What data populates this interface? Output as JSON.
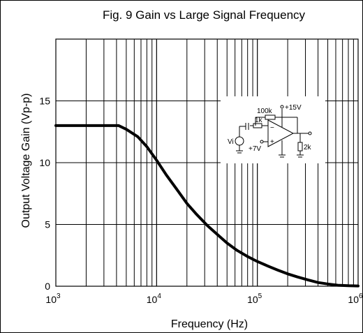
{
  "chart_data": {
    "type": "line",
    "title": "Fig. 9 Gain vs Large Signal Frequency",
    "xlabel": "Frequency (Hz)",
    "ylabel": "Output Voltage Gain (Vp-p)",
    "x_scale": "log",
    "xlim": [
      1000,
      1000000
    ],
    "ylim": [
      0,
      20
    ],
    "grid": true,
    "x_ticks": [
      {
        "base": "10",
        "exp": "3",
        "value": 1000
      },
      {
        "base": "10",
        "exp": "4",
        "value": 10000
      },
      {
        "base": "10",
        "exp": "5",
        "value": 100000
      },
      {
        "base": "10",
        "exp": "6",
        "value": 1000000
      }
    ],
    "y_ticks": [
      {
        "label": "0",
        "value": 0
      },
      {
        "label": "5",
        "value": 5
      },
      {
        "label": "10",
        "value": 10
      },
      {
        "label": "15",
        "value": 15
      }
    ],
    "series": [
      {
        "color": "#000000",
        "points": [
          {
            "x": 1000,
            "y": 13.0
          },
          {
            "x": 2000,
            "y": 13.0
          },
          {
            "x": 3000,
            "y": 13.0
          },
          {
            "x": 4200,
            "y": 13.0
          },
          {
            "x": 5000,
            "y": 12.7
          },
          {
            "x": 6500,
            "y": 12.1
          },
          {
            "x": 8000,
            "y": 11.3
          },
          {
            "x": 10000,
            "y": 10.2
          },
          {
            "x": 12500,
            "y": 9.0
          },
          {
            "x": 16000,
            "y": 7.8
          },
          {
            "x": 20000,
            "y": 6.7
          },
          {
            "x": 25000,
            "y": 5.8
          },
          {
            "x": 32000,
            "y": 4.9
          },
          {
            "x": 40000,
            "y": 4.2
          },
          {
            "x": 50000,
            "y": 3.5
          },
          {
            "x": 63000,
            "y": 2.9
          },
          {
            "x": 80000,
            "y": 2.4
          },
          {
            "x": 100000,
            "y": 2.0
          },
          {
            "x": 130000,
            "y": 1.6
          },
          {
            "x": 160000,
            "y": 1.3
          },
          {
            "x": 200000,
            "y": 1.0
          },
          {
            "x": 250000,
            "y": 0.75
          },
          {
            "x": 320000,
            "y": 0.5
          },
          {
            "x": 400000,
            "y": 0.3
          },
          {
            "x": 500000,
            "y": 0.18
          },
          {
            "x": 630000,
            "y": 0.08
          },
          {
            "x": 800000,
            "y": 0.04
          },
          {
            "x": 1000000,
            "y": 0.02
          }
        ]
      }
    ]
  },
  "circuit": {
    "r_feedback": "100k",
    "r_input": "1k",
    "supply": "+15V",
    "bias": "+7V",
    "source": "Vi",
    "r_load": "2k",
    "minus": "−",
    "plus": "+"
  }
}
